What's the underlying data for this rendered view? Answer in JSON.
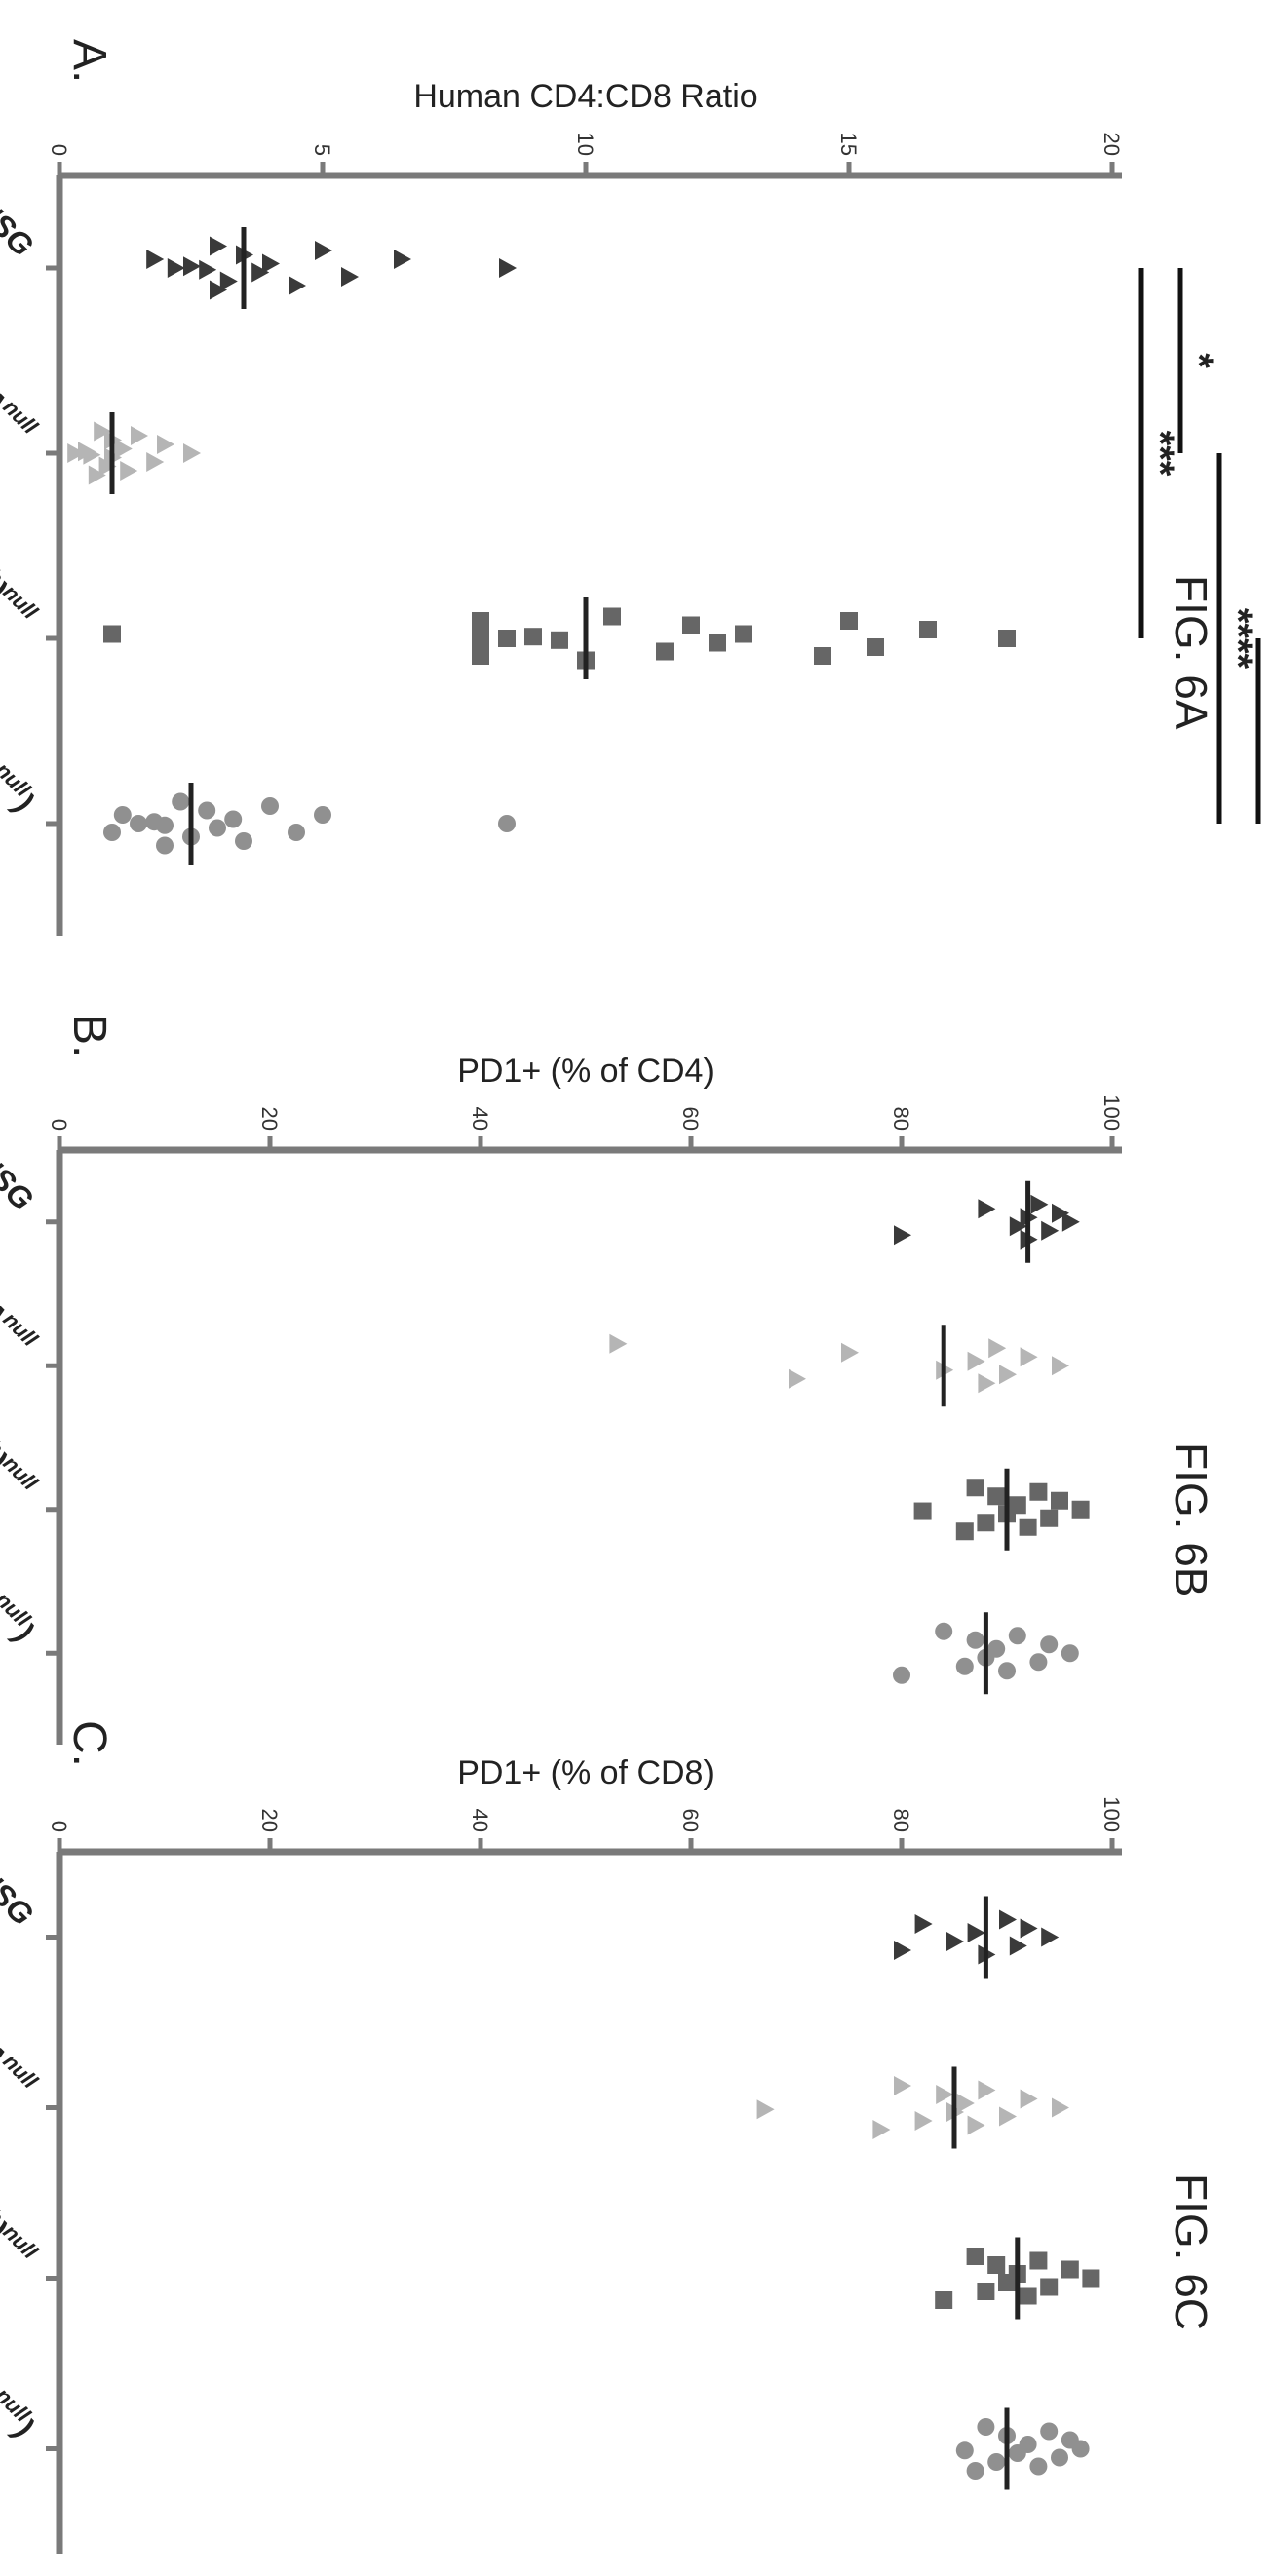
{
  "colors": {
    "NSG": "#3a3a3a",
    "NSG-IAnull": "#b5b5b5",
    "NSG-(KbDb)null": "#666666",
    "NSG-(KbDb)null(IAnull)": "#909090",
    "axis": "#7a7a7a"
  },
  "chart_data": [
    {
      "type": "scatter",
      "panel_label": "A.",
      "figure_label": "FIG. 6A",
      "ylabel": "Human CD4:CD8 Ratio",
      "ylim": [
        0,
        20
      ],
      "yticks": [
        0,
        5,
        10,
        15,
        20
      ],
      "categories": [
        "NSG",
        "NSG-IAnull",
        "NSG-(KbDb)null",
        "NSG-(KbDb)null(IAnull)"
      ],
      "series": [
        {
          "category": "NSG",
          "marker": "triangle",
          "mean": 3.5,
          "values": [
            8.5,
            6.5,
            5.5,
            5,
            4.5,
            4,
            3.8,
            3.5,
            3.2,
            3,
            3,
            2.8,
            2.5,
            2.2,
            1.8
          ]
        },
        {
          "category": "NSG-IAnull",
          "marker": "triangle",
          "mean": 1.0,
          "values": [
            2.5,
            2,
            1.8,
            1.5,
            1.3,
            1.2,
            1,
            1,
            0.9,
            0.8,
            0.7,
            0.6,
            0.5,
            0.3
          ]
        },
        {
          "category": "NSG-(KbDb)null",
          "marker": "square",
          "mean": 10,
          "values": [
            18,
            16.5,
            15.5,
            15,
            14.5,
            13,
            12.5,
            12,
            11.5,
            10.5,
            10,
            9.5,
            9,
            8.5,
            8,
            8,
            8,
            8,
            1
          ]
        },
        {
          "category": "NSG-(KbDb)null(IAnull)",
          "marker": "circle",
          "mean": 2.5,
          "values": [
            8.5,
            5,
            4.5,
            4,
            3.5,
            3.3,
            3,
            2.8,
            2.5,
            2.3,
            2,
            2,
            1.8,
            1.5,
            1.2,
            1
          ]
        }
      ],
      "significance": [
        {
          "label": "***",
          "from": "NSG",
          "to": "NSG-(KbDb)null"
        },
        {
          "label": "*",
          "from": "NSG",
          "to": "NSG-IAnull"
        },
        {
          "label": "****",
          "from": "NSG-IAnull",
          "to": "NSG-(KbDb)null(IAnull)"
        },
        {
          "label": "***",
          "from": "NSG-(KbDb)null",
          "to": "NSG-(KbDb)null(IAnull)"
        }
      ]
    },
    {
      "type": "scatter",
      "panel_label": "B.",
      "figure_label": "FIG. 6B",
      "ylabel": "PD1+ (% of CD4)",
      "ylim": [
        0,
        100
      ],
      "yticks": [
        0,
        20,
        40,
        60,
        80,
        100
      ],
      "categories": [
        "NSG",
        "NSG-IAnull",
        "NSG-(KbDb)null",
        "NSG-(KbDb)null(IAnull)"
      ],
      "series": [
        {
          "category": "NSG",
          "marker": "triangle",
          "mean": 92,
          "values": [
            96,
            95,
            94,
            93,
            92,
            92,
            91,
            88,
            80
          ]
        },
        {
          "category": "NSG-IAnull",
          "marker": "triangle",
          "mean": 84,
          "values": [
            95,
            92,
            90,
            89,
            88,
            87,
            84,
            75,
            70,
            53
          ]
        },
        {
          "category": "NSG-(KbDb)null",
          "marker": "square",
          "mean": 90,
          "values": [
            97,
            95,
            94,
            93,
            92,
            91,
            90,
            89,
            88,
            87,
            86,
            82
          ]
        },
        {
          "category": "NSG-(KbDb)null(IAnull)",
          "marker": "circle",
          "mean": 88,
          "values": [
            96,
            94,
            93,
            91,
            90,
            89,
            88,
            87,
            86,
            84,
            80
          ]
        }
      ]
    },
    {
      "type": "scatter",
      "panel_label": "C.",
      "figure_label": "FIG. 6C",
      "ylabel": "PD1+ (% of CD8)",
      "ylim": [
        0,
        100
      ],
      "yticks": [
        0,
        20,
        40,
        60,
        80,
        100
      ],
      "categories": [
        "NSG",
        "NSG-IAnull",
        "NSG-(KbDb)null",
        "NSG-(KbDb)null(IAnull)"
      ],
      "series": [
        {
          "category": "NSG",
          "marker": "triangle",
          "mean": 88,
          "values": [
            94,
            92,
            91,
            90,
            88,
            87,
            85,
            82,
            80
          ]
        },
        {
          "category": "NSG-IAnull",
          "marker": "triangle",
          "mean": 85,
          "values": [
            95,
            92,
            90,
            88,
            87,
            86,
            85,
            84,
            82,
            80,
            78,
            67
          ]
        },
        {
          "category": "NSG-(KbDb)null",
          "marker": "square",
          "mean": 91,
          "values": [
            98,
            96,
            94,
            93,
            92,
            91,
            90,
            89,
            88,
            87,
            84
          ]
        },
        {
          "category": "NSG-(KbDb)null(IAnull)",
          "marker": "circle",
          "mean": 90,
          "values": [
            97,
            96,
            95,
            94,
            93,
            92,
            91,
            90,
            89,
            88,
            87,
            86
          ]
        }
      ]
    }
  ]
}
